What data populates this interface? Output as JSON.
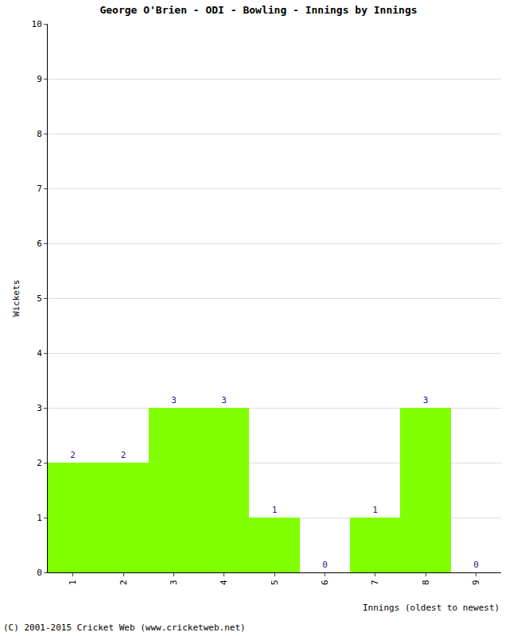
{
  "chart_data": {
    "type": "bar",
    "title": "George O'Brien - ODI - Bowling - Innings by Innings",
    "x_label": "Innings (oldest to newest)",
    "y_label": "Wickets",
    "categories": [
      "1",
      "2",
      "3",
      "4",
      "5",
      "6",
      "7",
      "8",
      "9"
    ],
    "values": [
      2,
      2,
      3,
      3,
      1,
      0,
      1,
      3,
      0
    ],
    "color": "#80ff00",
    "ylim": [
      0,
      10
    ],
    "yticks": [
      0,
      1,
      2,
      3,
      4,
      5,
      6,
      7,
      8,
      9,
      10
    ],
    "grid": true,
    "data_labels": true,
    "annotations": [
      "(C) 2001-2015 Cricket Web (www.cricketweb.net)"
    ]
  }
}
